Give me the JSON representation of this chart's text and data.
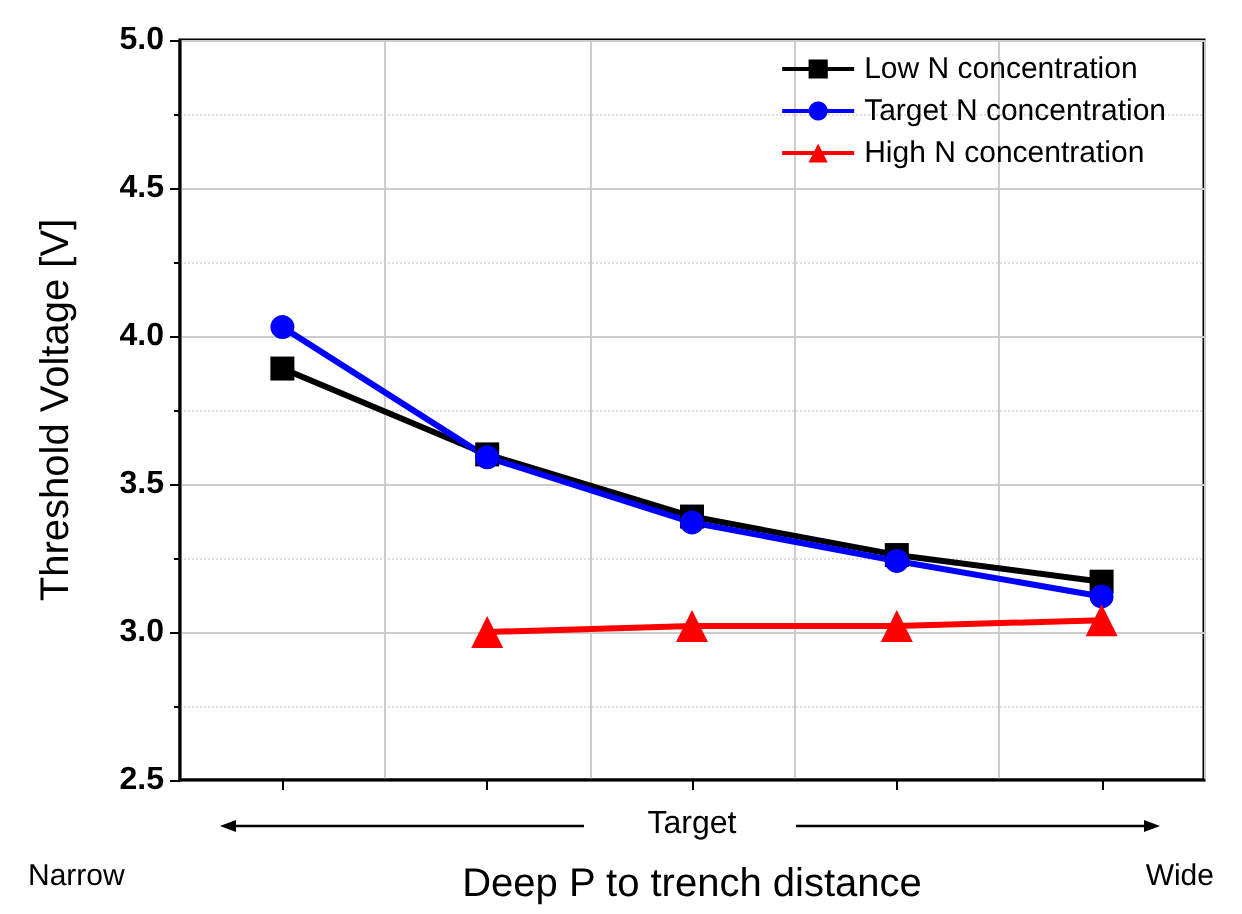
{
  "chart_data": {
    "type": "line",
    "xlabel": "Deep P to trench distance",
    "ylabel": "Threshold Voltage [V]",
    "categories": [
      null,
      null,
      null,
      null,
      null
    ],
    "series": [
      {
        "name": "Low N concentration",
        "color": "#000000",
        "marker": "square",
        "values": [
          3.89,
          3.6,
          3.39,
          3.26,
          3.17
        ]
      },
      {
        "name": "Target N concentration",
        "color": "#0000ff",
        "marker": "circle",
        "values": [
          4.03,
          3.59,
          3.37,
          3.24,
          3.12
        ]
      },
      {
        "name": "High N concentration",
        "color": "#ff0000",
        "marker": "triangle",
        "values": [
          null,
          3.0,
          3.02,
          3.02,
          3.04
        ]
      }
    ],
    "ylim": [
      2.5,
      5.0
    ],
    "yticks": [
      2.5,
      {
        "value": 3,
        "label": "3.0"
      },
      3.5,
      {
        "value": 4,
        "label": "4.0"
      },
      4.5,
      {
        "value": 5,
        "label": "5.0"
      }
    ],
    "grid": true,
    "legend": "top right",
    "annotations": [
      "Target",
      "Narrow",
      "Wide"
    ]
  }
}
